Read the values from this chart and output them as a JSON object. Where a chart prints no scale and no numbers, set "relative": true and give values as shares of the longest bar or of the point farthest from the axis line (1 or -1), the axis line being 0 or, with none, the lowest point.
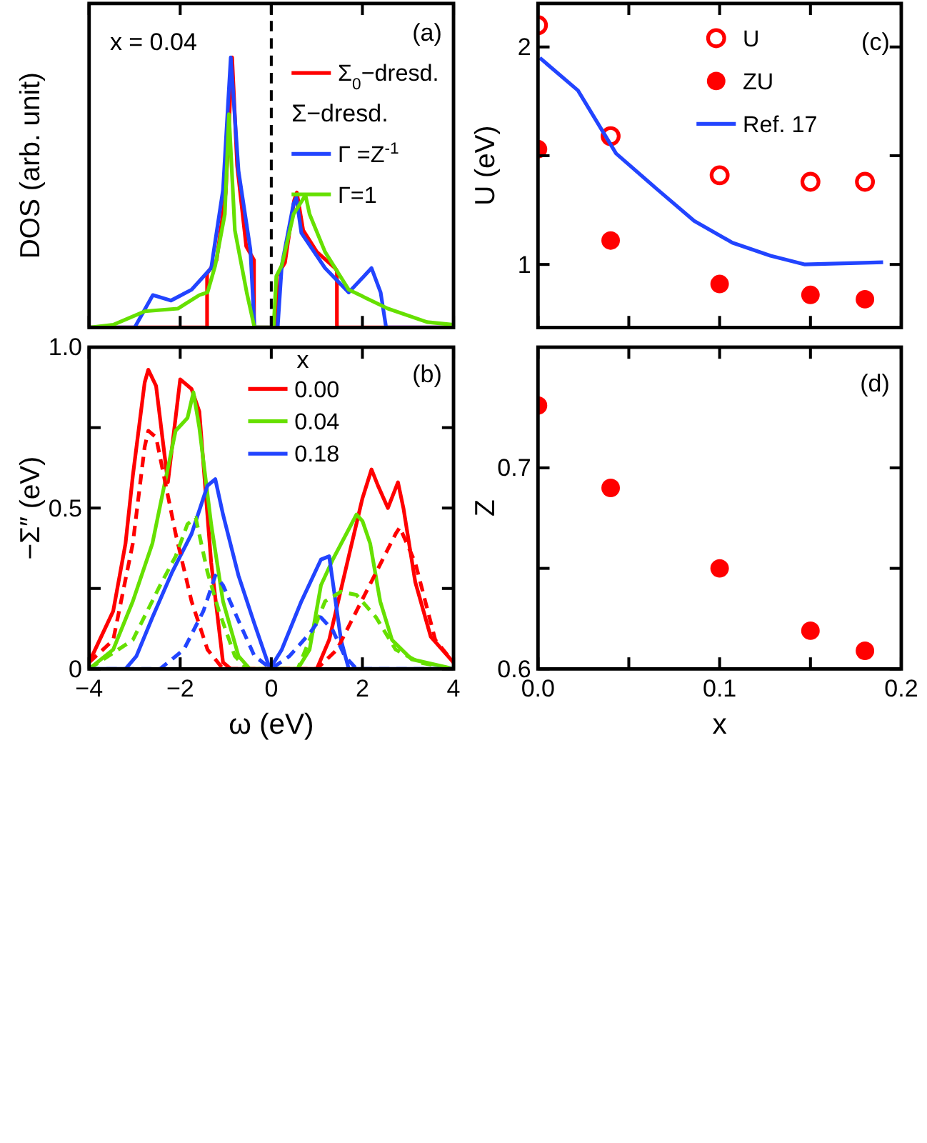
{
  "chart_data": [
    {
      "type": "line",
      "relative": true,
      "ylabel": "DOS (arb. unit)",
      "xlim": [
        -4,
        4
      ],
      "xticks": [
        -4,
        -2,
        0,
        2,
        4
      ],
      "tick_labels": false,
      "legend": "top right",
      "annotations": [
        "(a)",
        "x = 0.04",
        "Σ−dresd."
      ],
      "ref_lines": [
        {
          "axis": "x",
          "value": 0,
          "color": "#000000",
          "line_style": "dashed"
        }
      ],
      "series": [
        {
          "name": "Σ$_{0}$−dresd.",
          "color": "#ff0000",
          "x": [
            -4,
            -1.41,
            -1.41,
            -1.2,
            -1.0,
            -0.86,
            -0.75,
            -0.55,
            -0.38,
            -0.38,
            0.12,
            0.12,
            0.3,
            0.5,
            0.56,
            0.7,
            1.0,
            1.4,
            1.44,
            1.44,
            4
          ],
          "values": [
            0,
            0,
            0.2,
            0.25,
            0.5,
            1.0,
            0.6,
            0.3,
            0.25,
            0,
            0,
            0.19,
            0.24,
            0.47,
            0.5,
            0.36,
            0.28,
            0.22,
            0.21,
            0,
            0
          ]
        },
        {
          "name": "Γ =Z$^{-1}$",
          "color": "#2244ff",
          "x": [
            -4,
            -3.0,
            -2.6,
            -2.2,
            -1.75,
            -1.32,
            -1.06,
            -0.89,
            -0.72,
            -0.46,
            -0.37,
            0.14,
            0.23,
            0.49,
            0.55,
            0.66,
            1.18,
            1.7,
            2.2,
            2.4,
            2.52,
            4
          ],
          "values": [
            0,
            0,
            0.12,
            0.1,
            0.14,
            0.22,
            0.51,
            1.0,
            0.58,
            0.29,
            0,
            0,
            0.23,
            0.46,
            0.48,
            0.35,
            0.22,
            0.13,
            0.22,
            0.13,
            0,
            0
          ]
        },
        {
          "name": "Γ=1",
          "color": "#66e000",
          "x": [
            -4,
            -3.47,
            -2.78,
            -2.05,
            -1.58,
            -1.4,
            -1.23,
            -1.02,
            -0.93,
            -0.8,
            -0.54,
            -0.37,
            0.05,
            0.11,
            0.23,
            0.49,
            0.75,
            0.84,
            1.18,
            1.7,
            2.56,
            3.42,
            4
          ],
          "values": [
            0,
            0.01,
            0.06,
            0.07,
            0.12,
            0.13,
            0.23,
            0.42,
            0.79,
            0.36,
            0.13,
            0,
            0,
            0.19,
            0.23,
            0.42,
            0.49,
            0.42,
            0.28,
            0.14,
            0.07,
            0.02,
            0.01
          ]
        }
      ]
    },
    {
      "type": "line",
      "xlabel": "ω (eV)",
      "ylabel": "−Σ″ (eV)",
      "xlim": [
        -4,
        4
      ],
      "xticks": [
        {
          "value": -4,
          "label": "−4"
        },
        {
          "value": -2,
          "label": "−2"
        },
        0,
        2,
        4
      ],
      "ylim": [
        0,
        1
      ],
      "yticks": [
        0,
        {
          "value": 0.25,
          "label": null
        },
        0.5,
        {
          "value": 0.75,
          "label": null
        },
        {
          "value": 1,
          "label": "1.0"
        }
      ],
      "legend": "top",
      "legend_title": "x",
      "annotations": [
        "(b)"
      ],
      "series": [
        {
          "name": "0.00",
          "color": "#ff0000",
          "x": [
            -4,
            -3.47,
            -3.2,
            -3.04,
            -2.78,
            -2.7,
            -2.53,
            -2.27,
            -2.0,
            -1.75,
            -1.58,
            -1.32,
            -1.06,
            -0.89,
            1.0,
            1.27,
            1.7,
            2.0,
            2.2,
            2.34,
            2.56,
            2.78,
            2.9,
            3.16,
            3.5,
            4
          ],
          "values": [
            0.02,
            0.18,
            0.39,
            0.6,
            0.89,
            0.93,
            0.88,
            0.58,
            0.9,
            0.87,
            0.8,
            0.33,
            0.02,
            0,
            0,
            0.09,
            0.35,
            0.53,
            0.62,
            0.57,
            0.5,
            0.58,
            0.5,
            0.27,
            0.1,
            0.02
          ]
        },
        {
          "name": "0.04",
          "color": "#66e000",
          "x": [
            -4,
            -3.47,
            -3.04,
            -2.61,
            -2.35,
            -2.1,
            -1.84,
            -1.71,
            -1.58,
            -1.32,
            -1.06,
            -0.72,
            -0.47,
            0.58,
            0.84,
            1.09,
            1.35,
            1.61,
            1.87,
            2.0,
            2.17,
            2.39,
            2.65,
            3.08,
            4
          ],
          "values": [
            0,
            0.06,
            0.21,
            0.39,
            0.57,
            0.74,
            0.78,
            0.86,
            0.75,
            0.45,
            0.21,
            0.04,
            0,
            0,
            0.06,
            0.26,
            0.34,
            0.41,
            0.48,
            0.46,
            0.39,
            0.21,
            0.09,
            0.03,
            0
          ]
        },
        {
          "name": "0.18",
          "color": "#2244ff",
          "x": [
            -4,
            -3.2,
            -2.96,
            -2.61,
            -2.18,
            -1.75,
            -1.4,
            -1.23,
            -1.06,
            -0.72,
            -0.37,
            -0.03,
            0.23,
            0.66,
            1.09,
            1.27,
            1.53,
            1.7,
            4
          ],
          "values": [
            0,
            0,
            0.04,
            0.16,
            0.3,
            0.42,
            0.57,
            0.59,
            0.48,
            0.29,
            0.14,
            0,
            0.06,
            0.21,
            0.34,
            0.35,
            0.09,
            0,
            0
          ]
        },
        {
          "color": "#ff0000",
          "line_style": "dashed",
          "x": [
            -4,
            -3.47,
            -3.04,
            -2.78,
            -2.7,
            -2.53,
            -2.1,
            -1.75,
            -1.4,
            -1.06,
            1.0,
            1.44,
            1.87,
            2.3,
            2.73,
            2.82,
            3.16,
            3.6,
            4
          ],
          "values": [
            0.02,
            0.09,
            0.39,
            0.69,
            0.74,
            0.72,
            0.42,
            0.21,
            0.06,
            0,
            0,
            0.06,
            0.18,
            0.3,
            0.42,
            0.44,
            0.33,
            0.09,
            0.02
          ]
        },
        {
          "color": "#66e000",
          "line_style": "dashed",
          "x": [
            -4,
            -3.04,
            -2.44,
            -2.1,
            -1.84,
            -1.66,
            -1.4,
            -1.15,
            -0.8,
            -0.54,
            0.58,
            0.84,
            1.18,
            1.53,
            1.87,
            2.3,
            2.73,
            3.25,
            4
          ],
          "values": [
            0,
            0.09,
            0.26,
            0.35,
            0.45,
            0.47,
            0.3,
            0.18,
            0.04,
            0,
            0,
            0.09,
            0.21,
            0.24,
            0.23,
            0.16,
            0.06,
            0.02,
            0
          ]
        },
        {
          "color": "#2244ff",
          "line_style": "dashed",
          "x": [
            -4,
            -2.44,
            -1.92,
            -1.49,
            -1.23,
            -1.06,
            -0.72,
            -0.37,
            0,
            0.4,
            0.84,
            1.09,
            1.35,
            1.61,
            1.87,
            4
          ],
          "values": [
            0,
            0,
            0.06,
            0.18,
            0.29,
            0.26,
            0.15,
            0.04,
            0,
            0.04,
            0.11,
            0.16,
            0.12,
            0.04,
            0,
            0
          ]
        }
      ]
    },
    {
      "type": "scatter",
      "ylabel": "U (eV)",
      "xlim": [
        0,
        0.2
      ],
      "xticks": [
        0,
        0.05,
        0.1,
        0.15,
        0.2
      ],
      "ylim": [
        0.71,
        2.2
      ],
      "yticks": [
        1,
        {
          "value": 1.5,
          "label": null
        },
        2
      ],
      "tick_labels": "y",
      "legend": "top",
      "annotations": [
        "(c)"
      ],
      "series": [
        {
          "name": "U",
          "marker": "circle-open",
          "color": "#ff0000",
          "x": [
            0,
            0.04,
            0.1,
            0.15,
            0.18
          ],
          "values": [
            2.1,
            1.59,
            1.41,
            1.38,
            1.38
          ]
        },
        {
          "name": "ZU",
          "marker": "circle",
          "color": "#ff0000",
          "x": [
            0,
            0.04,
            0.1,
            0.15,
            0.18
          ],
          "values": [
            1.53,
            1.11,
            0.91,
            0.86,
            0.84
          ]
        },
        {
          "name": "Ref. 17",
          "type": "line",
          "color": "#2244ff",
          "x": [
            0.001,
            0.022,
            0.043,
            0.065,
            0.086,
            0.107,
            0.128,
            0.147,
            0.19
          ],
          "values": [
            1.95,
            1.8,
            1.51,
            1.35,
            1.2,
            1.1,
            1.04,
            1.0,
            1.01
          ]
        }
      ]
    },
    {
      "type": "scatter",
      "xlabel": "x",
      "ylabel": "Z",
      "xlim": [
        0,
        0.2
      ],
      "xticks": [
        {
          "value": 0,
          "label": "0.0"
        },
        {
          "value": 0.05,
          "label": null
        },
        {
          "value": 0.1,
          "label": "0.1"
        },
        {
          "value": 0.15,
          "label": null
        },
        {
          "value": 0.2,
          "label": "0.2"
        }
      ],
      "ylim": [
        0.6,
        0.76
      ],
      "yticks": [
        {
          "value": 0.6,
          "label": "0.6"
        },
        {
          "value": 0.65,
          "label": null
        },
        {
          "value": 0.7,
          "label": "0.7"
        }
      ],
      "marker": "circle",
      "annotations": [
        "(d)"
      ],
      "series": [
        {
          "color": "#ff0000",
          "x": [
            0,
            0.04,
            0.1,
            0.15,
            0.18
          ],
          "values": [
            0.731,
            0.69,
            0.65,
            0.619,
            0.609
          ]
        }
      ]
    }
  ]
}
